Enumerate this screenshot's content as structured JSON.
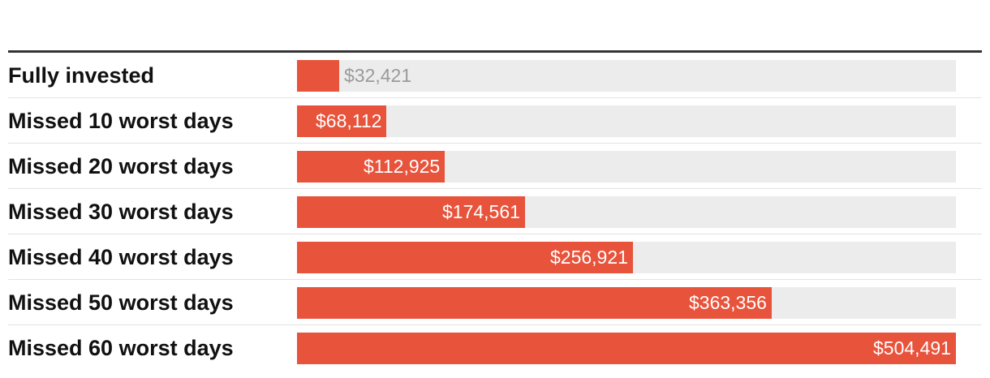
{
  "chart_data": {
    "type": "bar",
    "orientation": "horizontal",
    "title": "",
    "xlabel": "",
    "ylabel": "",
    "xlim": [
      0,
      504491
    ],
    "grid": false,
    "legend": "none",
    "colors": {
      "bar": "#e8533b",
      "track": "#ececec",
      "rule": "#333333"
    },
    "categories": [
      "Fully invested",
      "Missed 10 worst days",
      "Missed 20 worst days",
      "Missed 30 worst days",
      "Missed 40 worst days",
      "Missed 50 worst days",
      "Missed 60 worst days"
    ],
    "values": [
      32421,
      68112,
      112925,
      174561,
      256921,
      363356,
      504491
    ],
    "value_labels": [
      "$32,421",
      "$68,112",
      "$112,925",
      "$174,561",
      "$256,921",
      "$363,356",
      "$504,491"
    ]
  }
}
